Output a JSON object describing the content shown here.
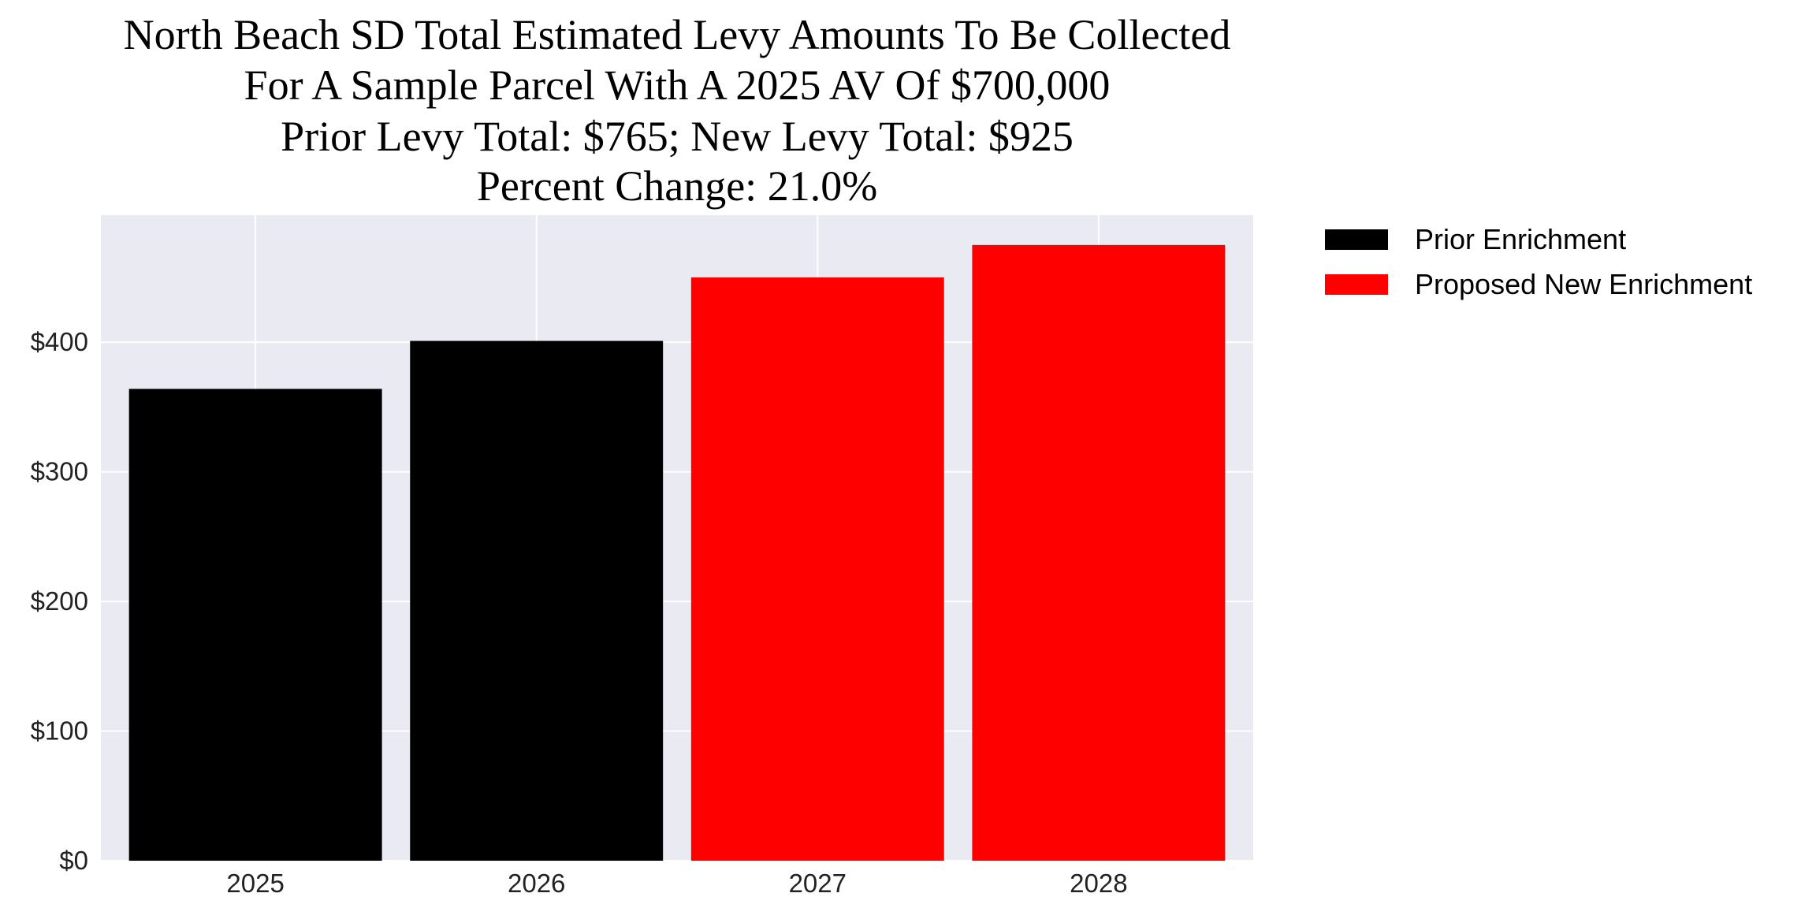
{
  "chart_data": {
    "type": "bar",
    "title": [
      "North Beach SD Total Estimated Levy Amounts To Be Collected",
      "For A Sample Parcel With A 2025 AV Of $700,000",
      "Prior Levy Total:  $765; New Levy Total: $925",
      "Percent Change: 21.0%"
    ],
    "xlabel": "",
    "ylabel": "",
    "categories": [
      "2025",
      "2026",
      "2027",
      "2028"
    ],
    "values": [
      364,
      401,
      450,
      475
    ],
    "bar_series": [
      "Prior Enrichment",
      "Prior Enrichment",
      "Proposed New Enrichment",
      "Proposed New Enrichment"
    ],
    "series": [
      {
        "name": "Prior Enrichment",
        "color": "#000000"
      },
      {
        "name": "Proposed New Enrichment",
        "color": "#ff0000"
      }
    ],
    "ylim": [
      0,
      498
    ],
    "yticks": [
      0,
      100,
      200,
      300,
      400
    ],
    "ytick_labels": [
      "$0",
      "$100",
      "$200",
      "$300",
      "$400"
    ],
    "grid": true,
    "background": "#eaeaf2",
    "legend_position": "outside-top-right"
  }
}
